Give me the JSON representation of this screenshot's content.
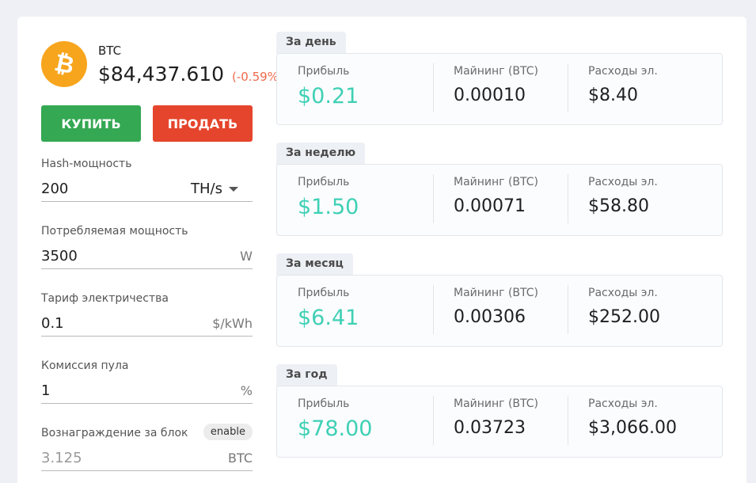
{
  "coin": {
    "logo_glyph": "₿",
    "symbol": "BTC",
    "price": "$84,437.610",
    "change": "(-0.59%)",
    "change_color": "#ef6a4c",
    "logo_color": "#f7a51c"
  },
  "actions": {
    "buy_label": "КУПИТЬ",
    "sell_label": "ПРОДАТЬ",
    "buy_color": "#34a853",
    "sell_color": "#e5452c"
  },
  "fields": {
    "hashrate": {
      "label": "Hash-мощность",
      "value": "200",
      "unit": "TH/s"
    },
    "power": {
      "label": "Потребляемая мощность",
      "value": "3500",
      "unit": "W"
    },
    "tariff": {
      "label": "Тариф электричества",
      "value": "0.1",
      "unit": "$/kWh"
    },
    "pool_fee": {
      "label": "Комиссия пула",
      "value": "1",
      "unit": "%"
    },
    "block_reward": {
      "label": "Вознаграждение за блок",
      "value": "3.125",
      "unit": "BTC",
      "badge": "enable"
    }
  },
  "periods": [
    {
      "tab": "За день",
      "profit_label": "Прибыль",
      "profit": "$0.21",
      "mining_label": "Майнинг (BTC)",
      "mining": "0.00010",
      "cost_label": "Расходы эл.",
      "cost": "$8.40"
    },
    {
      "tab": "За неделю",
      "profit_label": "Прибыль",
      "profit": "$1.50",
      "mining_label": "Майнинг (BTC)",
      "mining": "0.00071",
      "cost_label": "Расходы эл.",
      "cost": "$58.80"
    },
    {
      "tab": "За месяц",
      "profit_label": "Прибыль",
      "profit": "$6.41",
      "mining_label": "Майнинг (BTC)",
      "mining": "0.00306",
      "cost_label": "Расходы эл.",
      "cost": "$252.00"
    },
    {
      "tab": "За год",
      "profit_label": "Прибыль",
      "profit": "$78.00",
      "mining_label": "Майнинг (BTC)",
      "mining": "0.03723",
      "cost_label": "Расходы эл.",
      "cost": "$3,066.00"
    }
  ],
  "colors": {
    "profit": "#3fd0b5",
    "background": "#eef0f5"
  }
}
